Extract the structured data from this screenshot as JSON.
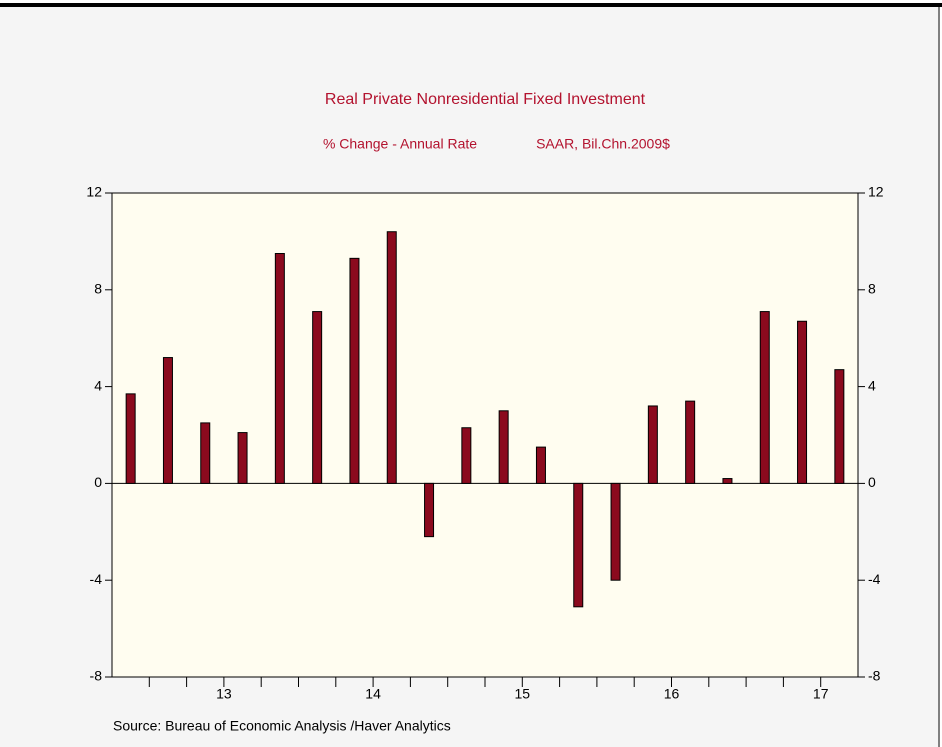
{
  "chart_data": {
    "type": "bar",
    "title": "Real Private Nonresidential Fixed Investment",
    "subtitle_left": "% Change - Annual Rate",
    "subtitle_right": "SAAR, Bil.Chn.2009$",
    "source": "Source:  Bureau of Economic Analysis /Haver Analytics",
    "values": [
      3.7,
      5.2,
      2.5,
      2.1,
      9.5,
      7.1,
      9.3,
      10.4,
      -2.2,
      2.3,
      3.0,
      1.5,
      -5.1,
      -4.0,
      3.2,
      3.4,
      0.2,
      7.1,
      6.7,
      4.7
    ],
    "color": "#8b0a1e",
    "xlim": [
      0,
      20
    ],
    "xticks": [
      {
        "value": 3,
        "label": "13"
      },
      {
        "value": 7,
        "label": "14"
      },
      {
        "value": 11,
        "label": "15"
      },
      {
        "value": 15,
        "label": "16"
      },
      {
        "value": 19,
        "label": "17"
      }
    ],
    "ylim": [
      -8,
      12
    ],
    "yticks": [
      -8,
      -4,
      0,
      4,
      8,
      12
    ],
    "y2lim": [
      -8,
      12
    ],
    "y2ticks": [
      -8,
      -4,
      0,
      4,
      8,
      12
    ]
  }
}
